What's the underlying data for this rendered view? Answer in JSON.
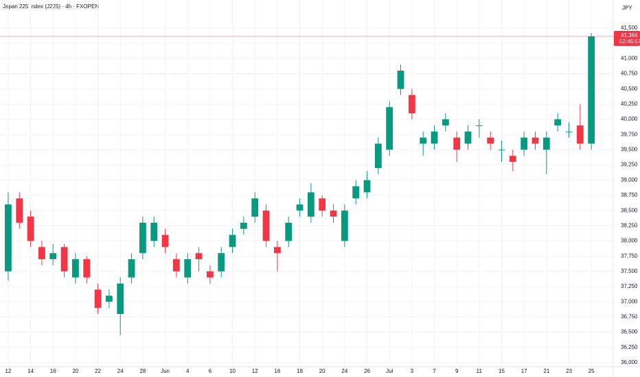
{
  "chart_data": {
    "type": "candlestick",
    "title": "Japan 225 Index (J225) · 4h · FXOPEN",
    "currency": "JPY",
    "up_color": "#089981",
    "down_color": "#f23645",
    "grid": true,
    "open": [
      37500,
      38700,
      38400,
      37900,
      37700,
      37900,
      37400,
      37700,
      37200,
      37000,
      36800,
      37400,
      37800,
      38000,
      38100,
      37700,
      37400,
      37800,
      37500,
      37500,
      37900,
      38200,
      38400,
      38500,
      37900,
      38000,
      38500,
      38400,
      38700,
      38500,
      38000,
      38700,
      38800,
      39200,
      39500,
      40500,
      40400,
      39600,
      39600,
      39900,
      39700,
      39600,
      39900,
      39700,
      39500,
      39400,
      39500,
      39700,
      39500,
      39900,
      39800,
      39900,
      39600
    ],
    "high": [
      38800,
      38800,
      38500,
      38000,
      37950,
      37950,
      37800,
      37750,
      37300,
      37200,
      37400,
      37800,
      38400,
      38400,
      38200,
      37800,
      37800,
      37900,
      37600,
      37900,
      38200,
      38400,
      38800,
      38600,
      38000,
      38400,
      38700,
      38950,
      38750,
      38600,
      38600,
      39000,
      39150,
      39700,
      40300,
      40900,
      40500,
      39800,
      39900,
      40100,
      39800,
      39900,
      40000,
      39800,
      39650,
      39500,
      39800,
      39800,
      39800,
      40100,
      39950,
      40250,
      41420
    ],
    "low": [
      37350,
      38200,
      37900,
      37600,
      37600,
      37400,
      37300,
      37300,
      36800,
      36900,
      36450,
      37300,
      37700,
      37900,
      37800,
      37400,
      37300,
      37500,
      37300,
      37400,
      37800,
      38100,
      38300,
      37900,
      37500,
      37900,
      38400,
      38300,
      38400,
      38300,
      37900,
      38600,
      38700,
      39100,
      39400,
      40400,
      40000,
      39400,
      39500,
      39800,
      39300,
      39500,
      39700,
      39500,
      39300,
      39150,
      39400,
      39500,
      39100,
      39800,
      39700,
      39500,
      39500
    ],
    "close": [
      38600,
      38300,
      38000,
      37700,
      37800,
      37500,
      37700,
      37400,
      36900,
      37100,
      37300,
      37700,
      38300,
      38300,
      37900,
      37500,
      37700,
      37700,
      37400,
      37800,
      38100,
      38300,
      38700,
      38000,
      37800,
      38300,
      38600,
      38800,
      38500,
      38400,
      38500,
      38900,
      39000,
      39600,
      40200,
      40800,
      40100,
      39700,
      39800,
      40000,
      39500,
      39800,
      39900,
      39600,
      39500,
      39300,
      39700,
      39600,
      39700,
      40000,
      39800,
      39600,
      41364
    ],
    "last_price": {
      "value": 41364,
      "label": "41,364"
    },
    "countdown": "02:45:57",
    "xlim": [
      -0.73,
      53.95
    ],
    "xticks": [
      {
        "value": 0,
        "label": "12"
      },
      {
        "value": 2,
        "label": "14"
      },
      {
        "value": 4,
        "label": "16"
      },
      {
        "value": 6,
        "label": "20"
      },
      {
        "value": 8,
        "label": "22"
      },
      {
        "value": 10,
        "label": "24"
      },
      {
        "value": 12,
        "label": "28"
      },
      {
        "value": 14,
        "label": "Jun"
      },
      {
        "value": 16,
        "label": "4"
      },
      {
        "value": 18,
        "label": "6"
      },
      {
        "value": 20,
        "label": "10"
      },
      {
        "value": 22,
        "label": "12"
      },
      {
        "value": 24,
        "label": "16"
      },
      {
        "value": 26,
        "label": "18"
      },
      {
        "value": 28,
        "label": "20"
      },
      {
        "value": 30,
        "label": "24"
      },
      {
        "value": 32,
        "label": "26"
      },
      {
        "value": 34,
        "label": "Jul"
      },
      {
        "value": 36,
        "label": "3"
      },
      {
        "value": 38,
        "label": "7"
      },
      {
        "value": 40,
        "label": "9"
      },
      {
        "value": 42,
        "label": "11"
      },
      {
        "value": 44,
        "label": "15"
      },
      {
        "value": 46,
        "label": "17"
      },
      {
        "value": 48,
        "label": "21"
      },
      {
        "value": 50,
        "label": "23"
      },
      {
        "value": 52,
        "label": "25"
      }
    ],
    "ylim": [
      35932,
      41962
    ],
    "yticks": [
      {
        "value": 36000,
        "label": "36,000"
      },
      {
        "value": 36250,
        "label": "36,250"
      },
      {
        "value": 36500,
        "label": "36,500"
      },
      {
        "value": 36750,
        "label": "36,750"
      },
      {
        "value": 37000,
        "label": "37,000"
      },
      {
        "value": 37250,
        "label": "37,250"
      },
      {
        "value": 37500,
        "label": "37,500"
      },
      {
        "value": 37750,
        "label": "37,750"
      },
      {
        "value": 38000,
        "label": "38,000"
      },
      {
        "value": 38250,
        "label": "38,250"
      },
      {
        "value": 38500,
        "label": "38,500"
      },
      {
        "value": 38750,
        "label": "38,750"
      },
      {
        "value": 39000,
        "label": "39,000"
      },
      {
        "value": 39250,
        "label": "39,250"
      },
      {
        "value": 39500,
        "label": "39,500"
      },
      {
        "value": 39750,
        "label": "39,750"
      },
      {
        "value": 40000,
        "label": "40,000"
      },
      {
        "value": 40250,
        "label": "40,250"
      },
      {
        "value": 40500,
        "label": "40,500"
      },
      {
        "value": 40750,
        "label": "40,750"
      },
      {
        "value": 41000,
        "label": "41,000"
      },
      {
        "value": 41250,
        "label": "41,250"
      },
      {
        "value": 41500,
        "label": "41,500"
      }
    ]
  }
}
